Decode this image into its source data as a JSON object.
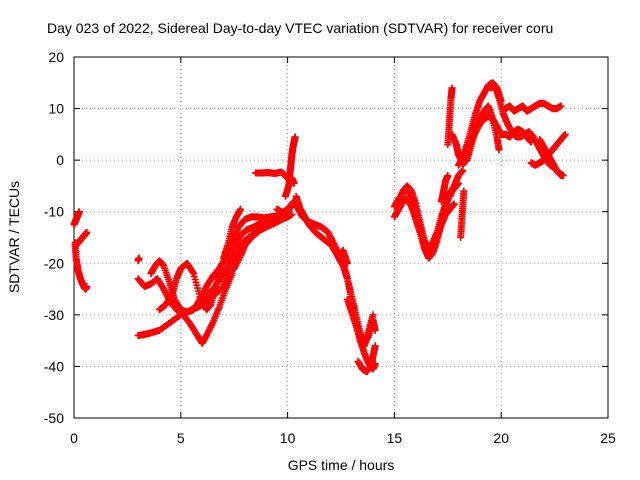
{
  "chart_data": {
    "type": "scatter",
    "title": "Day 023 of 2022, Sidereal Day-to-day VTEC variation (SDTVAR) for receiver coru",
    "xlabel": "GPS time / hours",
    "ylabel": "SDTVAR / TECUs",
    "xlim": [
      0,
      25
    ],
    "ylim": [
      -50,
      20
    ],
    "xticks": [
      0,
      5,
      10,
      15,
      20,
      25
    ],
    "yticks": [
      -50,
      -40,
      -30,
      -20,
      -10,
      0,
      10,
      20
    ],
    "grid": true,
    "marker": "+",
    "color": "#ff0000",
    "segments": [
      {
        "x": [
          0.0,
          0.05,
          0.1,
          0.15,
          0.2,
          0.25
        ],
        "y": [
          -12.5,
          -12.0,
          -11.5,
          -11.0,
          -10.5,
          -10.0
        ]
      },
      {
        "x": [
          0.05,
          0.1,
          0.2,
          0.3,
          0.4,
          0.5,
          0.55,
          0.6
        ],
        "y": [
          -16.0,
          -19.0,
          -21.5,
          -23.0,
          -24.0,
          -24.8,
          -25.0,
          -24.5
        ]
      },
      {
        "x": [
          0.1,
          0.2,
          0.3,
          0.4,
          0.5,
          0.6
        ],
        "y": [
          -16.5,
          -16.0,
          -15.5,
          -15.0,
          -14.5,
          -14.0
        ]
      },
      {
        "x": [
          3.0,
          3.05
        ],
        "y": [
          -19.5,
          -19.0
        ]
      },
      {
        "x": [
          3.0,
          3.3,
          3.6,
          4.0,
          4.5,
          5.0,
          5.5,
          5.8,
          6.0,
          6.2,
          6.5,
          7.0,
          7.3,
          7.5,
          7.8,
          8.0,
          8.5,
          9.0,
          9.5,
          10.0,
          10.2
        ],
        "y": [
          -34.0,
          -33.8,
          -33.5,
          -33.0,
          -31.5,
          -30.0,
          -29.0,
          -28.5,
          -28.0,
          -27.5,
          -26.5,
          -24.5,
          -22.0,
          -19.0,
          -17.0,
          -15.5,
          -14.0,
          -13.0,
          -12.0,
          -11.0,
          -10.5
        ]
      },
      {
        "x": [
          3.0,
          3.3,
          3.6,
          3.9,
          4.2,
          4.5,
          4.8,
          5.1,
          5.4,
          5.7,
          6.0,
          6.2,
          6.5,
          6.8,
          7.1,
          7.4
        ],
        "y": [
          -23.0,
          -24.5,
          -24.0,
          -23.0,
          -25.0,
          -27.5,
          -29.0,
          -30.0,
          -31.5,
          -33.5,
          -35.5,
          -34.0,
          -31.5,
          -28.5,
          -25.0,
          -22.0
        ]
      },
      {
        "x": [
          3.6,
          3.8,
          4.0,
          4.2,
          4.5,
          4.7,
          5.0,
          5.3,
          5.6,
          5.9,
          6.2,
          6.5,
          6.8,
          7.1,
          7.4,
          7.7,
          8.0,
          8.3,
          8.6,
          8.9,
          9.2,
          9.5,
          9.8,
          10.0
        ],
        "y": [
          -22.0,
          -20.5,
          -19.5,
          -20.5,
          -24.0,
          -27.0,
          -29.0,
          -29.5,
          -29.0,
          -27.0,
          -24.5,
          -22.5,
          -21.0,
          -19.0,
          -16.0,
          -13.0,
          -11.5,
          -11.0,
          -11.0,
          -11.2,
          -11.0,
          -10.8,
          -10.6,
          -10.5
        ]
      },
      {
        "x": [
          4.0,
          4.3,
          4.6,
          4.8,
          5.0,
          5.3,
          5.6,
          5.9,
          6.2,
          6.4,
          6.6,
          6.8,
          7.0,
          7.2,
          7.5,
          7.8,
          8.0,
          8.3,
          8.6,
          9.0,
          9.4,
          9.8,
          10.1
        ],
        "y": [
          -29.0,
          -28.0,
          -26.0,
          -23.0,
          -21.0,
          -20.0,
          -22.0,
          -26.5,
          -29.0,
          -28.0,
          -25.0,
          -22.5,
          -21.5,
          -22.0,
          -21.0,
          -18.5,
          -16.5,
          -15.0,
          -14.0,
          -12.5,
          -11.5,
          -11.0,
          -10.5
        ]
      },
      {
        "x": [
          6.0,
          6.4,
          6.8,
          7.2,
          7.5,
          7.8,
          8.1,
          8.4,
          8.8,
          9.2,
          9.6,
          10.0,
          10.2
        ],
        "y": [
          -27.0,
          -25.5,
          -23.5,
          -20.5,
          -17.0,
          -14.5,
          -13.5,
          -13.0,
          -12.0,
          -11.5,
          -10.5,
          -9.5,
          -9.0
        ]
      },
      {
        "x": [
          7.0,
          7.2,
          7.4,
          7.6,
          7.8
        ],
        "y": [
          -19.0,
          -16.5,
          -13.0,
          -11.0,
          -9.5
        ]
      },
      {
        "x": [
          8.5,
          8.8,
          9.1,
          9.4,
          9.7,
          9.9,
          10.0,
          10.1,
          10.2,
          10.3
        ],
        "y": [
          -2.5,
          -2.5,
          -2.4,
          -2.6,
          -2.3,
          -3.0,
          -3.5,
          -4.0,
          -3.5,
          -4.5
        ]
      },
      {
        "x": [
          9.9,
          10.05,
          10.1,
          10.15,
          10.2,
          10.25,
          10.3,
          10.35
        ],
        "y": [
          -7.0,
          -5.0,
          -3.0,
          -1.0,
          1.0,
          2.5,
          3.5,
          4.5
        ]
      },
      {
        "x": [
          9.5,
          9.7,
          9.9,
          10.1,
          10.3,
          10.5,
          10.7,
          11.0,
          11.3,
          11.6,
          11.9,
          12.2,
          12.4,
          12.6,
          12.8
        ],
        "y": [
          -9.5,
          -10.0,
          -10.5,
          -9.0,
          -8.0,
          -9.5,
          -11.0,
          -12.0,
          -12.5,
          -13.0,
          -14.0,
          -16.5,
          -18.5,
          -17.5,
          -20.0
        ]
      },
      {
        "x": [
          10.4,
          10.6,
          10.8,
          11.0,
          11.3,
          11.6,
          11.9,
          12.2
        ],
        "y": [
          -7.0,
          -9.5,
          -11.0,
          -12.5,
          -14.0,
          -15.0,
          -16.0,
          -17.0
        ]
      },
      {
        "x": [
          12.0,
          12.2,
          12.4,
          12.6,
          12.8,
          13.0,
          13.2,
          13.4,
          13.6,
          13.8,
          14.0,
          14.1
        ],
        "y": [
          -16.0,
          -17.5,
          -19.0,
          -20.5,
          -23.0,
          -26.5,
          -30.0,
          -33.5,
          -35.5,
          -34.0,
          -31.0,
          -33.0
        ]
      },
      {
        "x": [
          12.6,
          12.8,
          13.0,
          13.2,
          13.4,
          13.6,
          13.8,
          14.0
        ],
        "y": [
          -20.0,
          -23.0,
          -27.0,
          -31.0,
          -34.5,
          -36.0,
          -33.0,
          -30.0
        ]
      },
      {
        "x": [
          12.8,
          13.0,
          13.2,
          13.4,
          13.6,
          13.8,
          14.0,
          14.1
        ],
        "y": [
          -27.0,
          -29.5,
          -32.0,
          -35.0,
          -37.5,
          -39.5,
          -40.5,
          -39.5
        ]
      },
      {
        "x": [
          13.3,
          13.5,
          13.7,
          13.9,
          14.0,
          14.1
        ],
        "y": [
          -39.0,
          -40.5,
          -41.0,
          -40.0,
          -38.0,
          -36.0
        ]
      },
      {
        "x": [
          15.0,
          15.2,
          15.4,
          15.6,
          15.8,
          16.0,
          16.2,
          16.4,
          16.6,
          16.8,
          17.0,
          17.2,
          17.4,
          17.6,
          17.8
        ],
        "y": [
          -9.0,
          -7.5,
          -6.5,
          -5.5,
          -7.0,
          -9.5,
          -13.0,
          -16.5,
          -18.5,
          -17.5,
          -15.0,
          -12.5,
          -10.5,
          -9.5,
          -8.5
        ]
      },
      {
        "x": [
          15.0,
          15.2,
          15.4,
          15.6,
          15.8,
          16.0,
          16.2,
          16.4,
          16.6,
          16.8,
          17.0,
          17.2,
          17.4,
          17.6,
          17.8,
          18.0
        ],
        "y": [
          -11.0,
          -9.5,
          -8.0,
          -7.5,
          -9.0,
          -11.5,
          -14.0,
          -17.0,
          -19.0,
          -18.0,
          -15.5,
          -12.0,
          -9.0,
          -6.5,
          -5.5,
          -4.5
        ]
      },
      {
        "x": [
          15.2,
          15.4,
          15.6,
          15.8,
          16.0,
          16.2,
          16.4,
          16.6,
          16.8,
          17.0,
          17.2,
          17.4,
          17.6
        ],
        "y": [
          -8.0,
          -6.0,
          -5.0,
          -6.0,
          -8.5,
          -12.0,
          -15.5,
          -17.0,
          -16.0,
          -14.0,
          -11.0,
          -8.5,
          -6.0
        ]
      },
      {
        "x": [
          17.2,
          17.3,
          17.4,
          17.5
        ],
        "y": [
          -8.0,
          -6.0,
          -4.0,
          -3.0
        ]
      },
      {
        "x": [
          17.6,
          17.8,
          18.0,
          18.2
        ],
        "y": [
          -7.0,
          -5.0,
          -3.0,
          -2.0
        ]
      },
      {
        "x": [
          17.5,
          17.55,
          17.6,
          17.65,
          17.7
        ],
        "y": [
          3.0,
          6.0,
          9.0,
          12.0,
          14.0
        ]
      },
      {
        "x": [
          17.7,
          17.9,
          18.0,
          18.2,
          18.4,
          18.6,
          18.8,
          19.0,
          19.2,
          19.4,
          19.6,
          19.8,
          19.9
        ],
        "y": [
          5.0,
          3.0,
          1.0,
          -0.5,
          0.0,
          3.0,
          6.0,
          8.0,
          9.5,
          10.5,
          8.0,
          4.5,
          2.0
        ]
      },
      {
        "x": [
          18.0,
          18.2,
          18.4,
          18.6,
          18.8,
          19.0,
          19.2,
          19.4,
          19.6,
          19.8,
          20.0
        ],
        "y": [
          -1.0,
          0.5,
          3.0,
          6.0,
          9.0,
          11.5,
          13.0,
          14.5,
          15.0,
          14.0,
          11.5
        ]
      },
      {
        "x": [
          18.2,
          18.4,
          18.6,
          18.8,
          19.0,
          19.2,
          19.4,
          19.6,
          19.8,
          20.0,
          20.2,
          20.4,
          20.6,
          20.8,
          21.0,
          21.2,
          21.4
        ],
        "y": [
          -1.0,
          1.0,
          3.5,
          5.5,
          7.0,
          8.0,
          8.5,
          8.0,
          6.5,
          5.0,
          5.0,
          4.5,
          5.5,
          6.0,
          5.5,
          4.5,
          3.5
        ]
      },
      {
        "x": [
          18.1,
          18.15,
          18.2,
          18.25
        ],
        "y": [
          -15.0,
          -12.0,
          -9.0,
          -6.0
        ]
      },
      {
        "x": [
          19.5,
          19.7,
          19.9,
          20.1,
          20.3,
          20.5,
          20.7,
          20.9,
          21.1,
          21.3,
          21.5,
          21.7,
          21.9,
          22.1,
          22.3,
          22.5,
          22.7,
          22.9
        ],
        "y": [
          14.0,
          14.5,
          12.0,
          9.0,
          7.0,
          5.5,
          4.5,
          4.5,
          5.0,
          5.5,
          4.5,
          3.0,
          1.5,
          0.0,
          -1.0,
          -1.5,
          -2.5,
          -3.0
        ]
      },
      {
        "x": [
          20.2,
          20.4,
          20.6,
          20.8,
          21.0,
          21.2,
          21.4,
          21.6,
          21.8,
          22.0,
          22.2,
          22.4,
          22.6,
          22.8
        ],
        "y": [
          10.0,
          10.5,
          9.5,
          10.0,
          10.5,
          9.5,
          10.0,
          10.5,
          11.0,
          11.0,
          10.5,
          10.0,
          10.0,
          10.5
        ]
      },
      {
        "x": [
          21.4,
          21.6,
          21.8,
          22.0,
          22.2,
          22.4,
          22.6,
          22.8,
          23.0
        ],
        "y": [
          -0.5,
          -1.0,
          -0.5,
          0.0,
          1.0,
          2.0,
          3.0,
          4.0,
          5.0
        ]
      },
      {
        "x": [
          21.8,
          22.0,
          22.2,
          22.4,
          22.6,
          22.8
        ],
        "y": [
          4.0,
          2.5,
          1.0,
          -0.5,
          -2.0,
          -3.0
        ]
      }
    ]
  }
}
